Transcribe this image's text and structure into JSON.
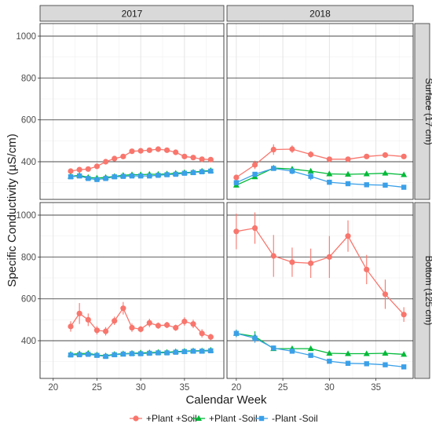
{
  "chart_data": {
    "type": "line",
    "xlabel": "Calendar Week",
    "ylabel": "Specific Conductivity (µS/cm)",
    "ylim": [
      220,
      1060
    ],
    "yticks": [
      400,
      600,
      800,
      1000
    ],
    "grid": true,
    "legend_position": "bottom",
    "columns": [
      "2017",
      "2018"
    ],
    "rows": [
      "Surface (17 cm)",
      "Bottom (125 cm)"
    ],
    "series_styles": [
      {
        "name": "+Plant +Soil",
        "color": "#F8766D",
        "marker": "circle"
      },
      {
        "name": "+Plant -Soil",
        "color": "#00BA38",
        "marker": "triangle"
      },
      {
        "name": "-Plant -Soil",
        "color": "#3BA0E8",
        "marker": "square"
      }
    ],
    "panels": [
      {
        "column": "2017",
        "row": "Surface (17 cm)",
        "xlim": [
          18.5,
          39.5
        ],
        "xticks": [
          20,
          25,
          30,
          35
        ],
        "series": [
          {
            "name": "+Plant +Soil",
            "x": [
              22,
              23,
              24,
              25,
              26,
              27,
              28,
              29,
              30,
              31,
              32,
              33,
              34,
              35,
              36,
              37,
              38
            ],
            "y": [
              355,
              362,
              365,
              378,
              400,
              415,
              425,
              450,
              452,
              455,
              460,
              455,
              445,
              425,
              420,
              412,
              410
            ],
            "err": [
              8,
              8,
              8,
              8,
              8,
              8,
              8,
              8,
              8,
              8,
              8,
              8,
              8,
              8,
              8,
              8,
              8
            ]
          },
          {
            "name": "+Plant -Soil",
            "x": [
              22,
              23,
              24,
              25,
              26,
              27,
              28,
              29,
              30,
              31,
              32,
              33,
              34,
              35,
              36,
              37,
              38
            ],
            "y": [
              330,
              335,
              325,
              322,
              325,
              330,
              335,
              338,
              338,
              340,
              340,
              342,
              345,
              348,
              350,
              355,
              358
            ],
            "err": [
              8,
              8,
              8,
              8,
              8,
              8,
              8,
              8,
              8,
              8,
              8,
              8,
              8,
              8,
              8,
              8,
              8
            ]
          },
          {
            "name": "-Plant -Soil",
            "x": [
              22,
              23,
              24,
              25,
              26,
              27,
              28,
              29,
              30,
              31,
              32,
              33,
              34,
              35,
              36,
              37,
              38
            ],
            "y": [
              328,
              332,
              320,
              315,
              320,
              328,
              330,
              332,
              332,
              332,
              335,
              338,
              340,
              345,
              348,
              352,
              355
            ],
            "err": [
              8,
              8,
              8,
              8,
              8,
              8,
              8,
              8,
              8,
              8,
              8,
              8,
              8,
              8,
              8,
              8,
              8
            ]
          }
        ]
      },
      {
        "column": "2018",
        "row": "Surface (17 cm)",
        "xlim": [
          19,
          39
        ],
        "xticks": [
          20,
          25,
          30,
          35
        ],
        "series": [
          {
            "name": "+Plant +Soil",
            "x": [
              20,
              22,
              24,
              26,
              28,
              30,
              32,
              34,
              36,
              38
            ],
            "y": [
              325,
              385,
              458,
              460,
              435,
              412,
              412,
              425,
              432,
              425
            ],
            "err": [
              12,
              20,
              25,
              18,
              15,
              10,
              10,
              10,
              10,
              8
            ]
          },
          {
            "name": "+Plant -Soil",
            "x": [
              20,
              22,
              24,
              26,
              28,
              30,
              32,
              34,
              36,
              38
            ],
            "y": [
              288,
              328,
              370,
              365,
              355,
              342,
              340,
              342,
              345,
              338
            ],
            "err": [
              8,
              8,
              10,
              10,
              10,
              8,
              8,
              8,
              8,
              8
            ]
          },
          {
            "name": "-Plant -Soil",
            "x": [
              20,
              22,
              24,
              26,
              28,
              30,
              32,
              34,
              36,
              38
            ],
            "y": [
              300,
              340,
              368,
              355,
              330,
              302,
              295,
              290,
              288,
              278
            ],
            "err": [
              8,
              10,
              10,
              15,
              18,
              12,
              10,
              8,
              8,
              8
            ]
          }
        ]
      },
      {
        "column": "2017",
        "row": "Bottom (125 cm)",
        "xlim": [
          18.5,
          39.5
        ],
        "xticks": [
          20,
          25,
          30,
          35
        ],
        "series": [
          {
            "name": "+Plant +Soil",
            "x": [
              22,
              23,
              24,
              25,
              26,
              27,
              28,
              29,
              30,
              31,
              32,
              33,
              34,
              35,
              36,
              37,
              38
            ],
            "y": [
              468,
              530,
              500,
              450,
              445,
              495,
              555,
              462,
              455,
              485,
              472,
              475,
              462,
              492,
              480,
              435,
              418
            ],
            "err": [
              25,
              50,
              30,
              20,
              20,
              20,
              30,
              20,
              15,
              20,
              15,
              15,
              15,
              20,
              20,
              20,
              15
            ]
          },
          {
            "name": "+Plant -Soil",
            "x": [
              22,
              23,
              24,
              25,
              26,
              27,
              28,
              29,
              30,
              31,
              32,
              33,
              34,
              35,
              36,
              37,
              38
            ],
            "y": [
              335,
              338,
              340,
              332,
              328,
              335,
              338,
              340,
              342,
              343,
              345,
              345,
              348,
              350,
              352,
              352,
              355
            ],
            "err": [
              10,
              10,
              10,
              10,
              10,
              8,
              8,
              8,
              8,
              8,
              8,
              8,
              8,
              8,
              8,
              8,
              8
            ]
          },
          {
            "name": "-Plant -Soil",
            "x": [
              22,
              23,
              24,
              25,
              26,
              27,
              28,
              29,
              30,
              31,
              32,
              33,
              34,
              35,
              36,
              37,
              38
            ],
            "y": [
              332,
              333,
              335,
              330,
              325,
              333,
              336,
              338,
              338,
              340,
              342,
              342,
              345,
              348,
              350,
              350,
              352
            ],
            "err": [
              10,
              10,
              10,
              10,
              10,
              8,
              8,
              8,
              8,
              8,
              8,
              8,
              8,
              8,
              8,
              8,
              8
            ]
          }
        ]
      },
      {
        "column": "2018",
        "row": "Bottom (125 cm)",
        "xlim": [
          19,
          39
        ],
        "xticks": [
          20,
          25,
          30,
          35
        ],
        "series": [
          {
            "name": "+Plant +Soil",
            "x": [
              20,
              22,
              24,
              26,
              28,
              30,
              32,
              34,
              36,
              38
            ],
            "y": [
              922,
              938,
              805,
              775,
              770,
              800,
              900,
              740,
              622,
              525
            ],
            "err": [
              85,
              75,
              100,
              70,
              70,
              100,
              75,
              70,
              70,
              35
            ]
          },
          {
            "name": "+Plant -Soil",
            "x": [
              20,
              22,
              24,
              26,
              28,
              30,
              32,
              34,
              36,
              38
            ],
            "y": [
              435,
              420,
              362,
              362,
              362,
              340,
              338,
              338,
              340,
              335
            ],
            "err": [
              18,
              25,
              10,
              10,
              10,
              10,
              8,
              8,
              8,
              8
            ]
          },
          {
            "name": "-Plant -Soil",
            "x": [
              20,
              22,
              24,
              26,
              28,
              30,
              32,
              34,
              36,
              38
            ],
            "y": [
              435,
              412,
              365,
              350,
              330,
              302,
              292,
              290,
              285,
              275
            ],
            "err": [
              18,
              22,
              10,
              10,
              12,
              10,
              8,
              8,
              8,
              8
            ]
          }
        ]
      }
    ]
  }
}
